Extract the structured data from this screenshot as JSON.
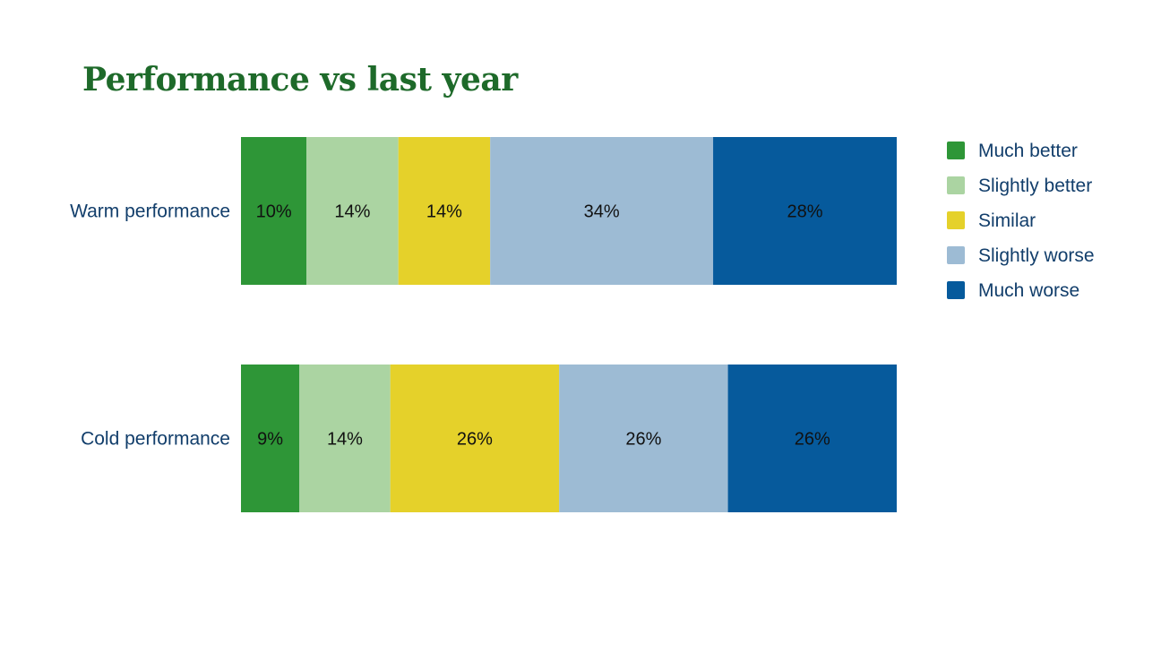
{
  "title": "Performance vs last year",
  "chart_data": {
    "type": "bar",
    "orientation": "horizontal",
    "stacked": true,
    "normalized": true,
    "title": "Performance vs last year",
    "categories": [
      "Warm performance",
      "Cold performance"
    ],
    "series": [
      {
        "name": "Much better",
        "color": "#2e9637",
        "values": [
          10,
          9
        ]
      },
      {
        "name": "Slightly better",
        "color": "#abd4a2",
        "values": [
          14,
          14
        ]
      },
      {
        "name": "Similar",
        "color": "#e5d12a",
        "values": [
          14,
          26
        ]
      },
      {
        "name": "Slightly worse",
        "color": "#9dbbd4",
        "values": [
          34,
          26
        ]
      },
      {
        "name": "Much worse",
        "color": "#065a9c",
        "values": [
          28,
          26
        ]
      }
    ],
    "data_labels": [
      [
        "10%",
        "14%",
        "14%",
        "34%",
        "28%"
      ],
      [
        "9%",
        "14%",
        "26%",
        "26%",
        "26%"
      ]
    ],
    "value_unit": "%",
    "legend_position": "right",
    "grid": false,
    "xlabel": "",
    "ylabel": ""
  }
}
